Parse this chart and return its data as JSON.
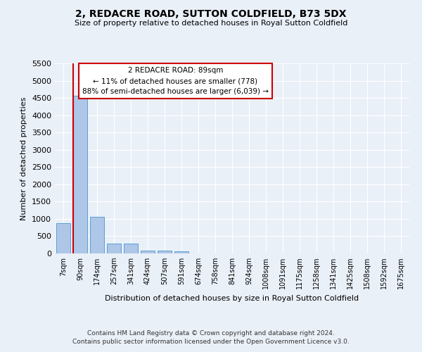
{
  "title": "2, REDACRE ROAD, SUTTON COLDFIELD, B73 5DX",
  "subtitle": "Size of property relative to detached houses in Royal Sutton Coldfield",
  "xlabel": "Distribution of detached houses by size in Royal Sutton Coldfield",
  "ylabel": "Number of detached properties",
  "footnote1": "Contains HM Land Registry data © Crown copyright and database right 2024.",
  "footnote2": "Contains public sector information licensed under the Open Government Licence v3.0.",
  "bin_labels": [
    "7sqm",
    "90sqm",
    "174sqm",
    "257sqm",
    "341sqm",
    "424sqm",
    "507sqm",
    "591sqm",
    "674sqm",
    "758sqm",
    "841sqm",
    "924sqm",
    "1008sqm",
    "1091sqm",
    "1175sqm",
    "1258sqm",
    "1341sqm",
    "1425sqm",
    "1508sqm",
    "1592sqm",
    "1675sqm"
  ],
  "bar_values": [
    880,
    4570,
    1060,
    290,
    290,
    90,
    90,
    55,
    0,
    0,
    0,
    0,
    0,
    0,
    0,
    0,
    0,
    0,
    0,
    0,
    0
  ],
  "bar_color": "#aec6e8",
  "bar_edge_color": "#5a9fd4",
  "highlight_line_color": "#cc0000",
  "annotation_text": "2 REDACRE ROAD: 89sqm\n← 11% of detached houses are smaller (778)\n88% of semi-detached houses are larger (6,039) →",
  "annotation_box_color": "white",
  "annotation_box_edge_color": "#cc0000",
  "ylim": [
    0,
    5500
  ],
  "yticks": [
    0,
    500,
    1000,
    1500,
    2000,
    2500,
    3000,
    3500,
    4000,
    4500,
    5000,
    5500
  ],
  "bg_color": "#eaf0f8",
  "plot_bg_color": "#eaf0f8",
  "grid_color": "white"
}
